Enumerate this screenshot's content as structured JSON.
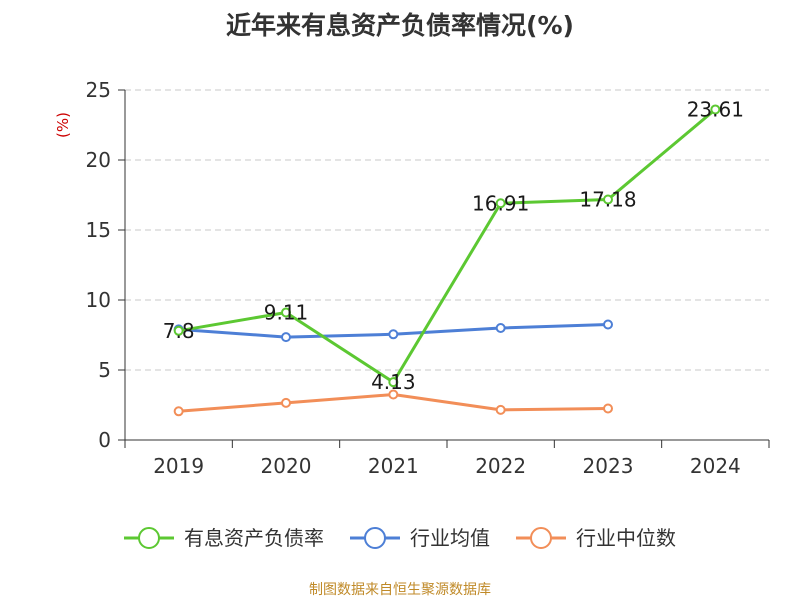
{
  "chart_data": {
    "type": "line",
    "title": "近年来有息资产负债率情况(%)",
    "ylabel": "(%)",
    "categories": [
      "2019",
      "2020",
      "2021",
      "2022",
      "2023",
      "2024"
    ],
    "ylim": [
      0,
      25
    ],
    "yticks": [
      "0",
      "5",
      "10",
      "15",
      "20",
      "25"
    ],
    "grid": true,
    "legend_position": "bottom",
    "series": [
      {
        "name": "有息资产负债率",
        "color": "#5cc832",
        "values": [
          7.8,
          9.11,
          4.13,
          16.91,
          17.18,
          23.61
        ],
        "labels": [
          "7.8",
          "9.11",
          "4.13",
          "16.91",
          "17.18",
          "23.61"
        ]
      },
      {
        "name": "行业均值",
        "color": "#4d7fd6",
        "values": [
          7.9,
          7.35,
          7.55,
          8.0,
          8.25,
          null
        ]
      },
      {
        "name": "行业中位数",
        "color": "#f28e58",
        "values": [
          2.05,
          2.65,
          3.25,
          2.15,
          2.25,
          null
        ]
      }
    ]
  },
  "source": "制图数据来自恒生聚源数据库"
}
